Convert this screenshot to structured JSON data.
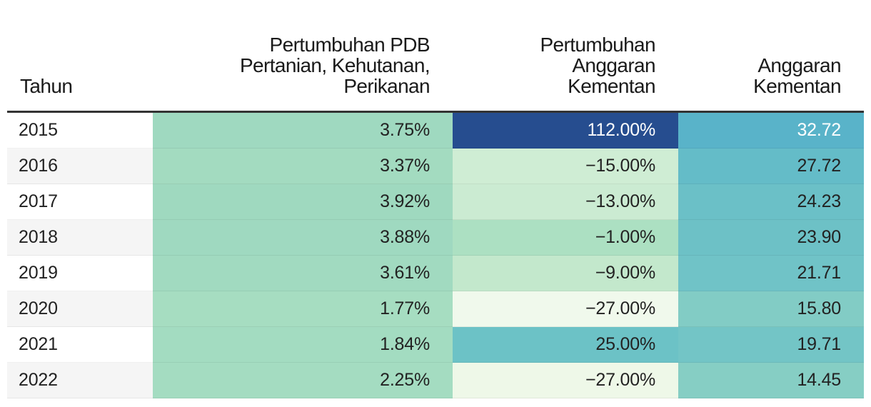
{
  "chart_data": {
    "type": "table",
    "columns": [
      "Tahun",
      "Pertumbuhan PDB Pertanian, Kehutanan, Perikanan",
      "Pertumbuhan Anggaran Kementan",
      "Anggaran Kementan"
    ],
    "header_lines": [
      [
        "Tahun"
      ],
      [
        "Pertumbuhan PDB",
        "Pertanian, Kehutanan,",
        "Perikanan"
      ],
      [
        "Pertumbuhan",
        "Anggaran",
        "Kementan"
      ],
      [
        "Anggaran",
        "Kementan"
      ]
    ],
    "rows": [
      {
        "year": "2015",
        "pdb": "3.75%",
        "growth": "112.00%",
        "budget": "32.72"
      },
      {
        "year": "2016",
        "pdb": "3.37%",
        "growth": "−15.00%",
        "budget": "27.72"
      },
      {
        "year": "2017",
        "pdb": "3.92%",
        "growth": "−13.00%",
        "budget": "24.23"
      },
      {
        "year": "2018",
        "pdb": "3.88%",
        "growth": "−1.00%",
        "budget": "23.90"
      },
      {
        "year": "2019",
        "pdb": "3.61%",
        "growth": "−9.00%",
        "budget": "21.71"
      },
      {
        "year": "2020",
        "pdb": "1.77%",
        "growth": "−27.00%",
        "budget": "15.80"
      },
      {
        "year": "2021",
        "pdb": "1.84%",
        "growth": "25.00%",
        "budget": "19.71"
      },
      {
        "year": "2022",
        "pdb": "2.25%",
        "growth": "−27.00%",
        "budget": "14.45"
      }
    ],
    "values": {
      "pdb": [
        3.75,
        3.37,
        3.92,
        3.88,
        3.61,
        1.77,
        1.84,
        2.25
      ],
      "growth": [
        112,
        -15,
        -13,
        -1,
        -9,
        -27,
        25,
        -27
      ],
      "budget": [
        32.72,
        27.72,
        24.23,
        23.9,
        21.71,
        15.8,
        19.71,
        14.45
      ]
    },
    "cell_colors": {
      "pdb": [
        "#9fd9c0",
        "#a3dbc0",
        "#9fd9bf",
        "#9fd9c0",
        "#a1dac0",
        "#a6ddc1",
        "#a3dcc1",
        "#a4dcc1"
      ],
      "growth": [
        "#264d8f",
        "#cfedd4",
        "#cbebd2",
        "#ace0c2",
        "#c3e8cc",
        "#f0f9ec",
        "#6cc2c6",
        "#eef8e8"
      ],
      "budget": [
        "#59b3c9",
        "#64bcc8",
        "#6bc0c7",
        "#6dc1c6",
        "#70c3c7",
        "#82ccc5",
        "#73c5c6",
        "#86cec4"
      ]
    },
    "text_colors": {
      "growth": [
        "#ffffff",
        "#222222",
        "#222222",
        "#222222",
        "#222222",
        "#222222",
        "#222222",
        "#222222"
      ],
      "budget": [
        "#ffffff",
        "#222222",
        "#222222",
        "#222222",
        "#222222",
        "#222222",
        "#222222",
        "#222222"
      ]
    }
  }
}
